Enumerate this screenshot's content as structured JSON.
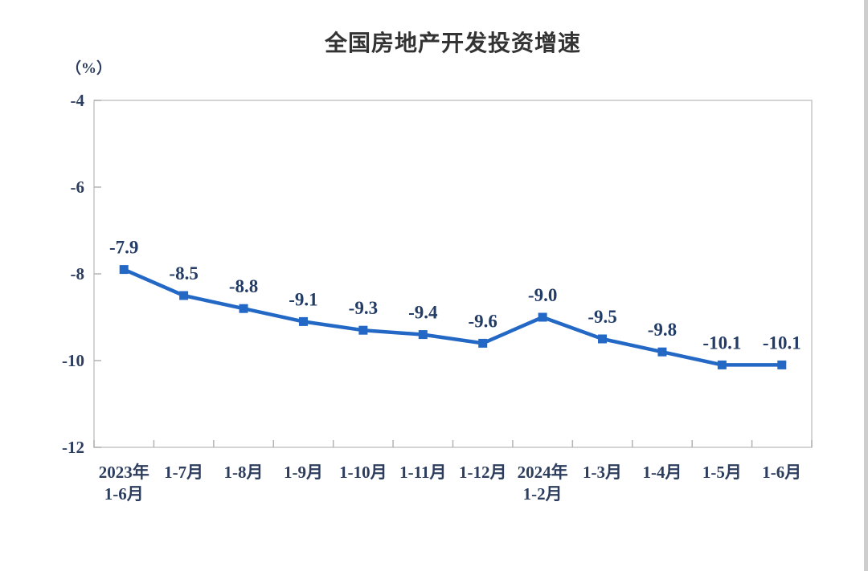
{
  "page": {
    "background": "#ffffff",
    "right_edge_strip_color": "#cdcdcd"
  },
  "chart_data": {
    "type": "line",
    "title": "全国房地产开发投资增速",
    "ylabel": "（%）",
    "xlabel": "",
    "categories": [
      [
        "2023年",
        "1-6月"
      ],
      [
        "1-7月"
      ],
      [
        "1-8月"
      ],
      [
        "1-9月"
      ],
      [
        "1-10月"
      ],
      [
        "1-11月"
      ],
      [
        "1-12月"
      ],
      [
        "2024年",
        "1-2月"
      ],
      [
        "1-3月"
      ],
      [
        "1-4月"
      ],
      [
        "1-5月"
      ],
      [
        "1-6月"
      ]
    ],
    "series": [
      {
        "name": "全国房地产开发投资增速",
        "values": [
          -7.9,
          -8.5,
          -8.8,
          -9.1,
          -9.3,
          -9.4,
          -9.6,
          -9.0,
          -9.5,
          -9.8,
          -10.1,
          -10.1
        ],
        "point_labels": [
          "-7.9",
          "-8.5",
          "-8.8",
          "-9.1",
          "-9.3",
          "-9.4",
          "-9.6",
          "-9.0",
          "-9.5",
          "-9.8",
          "-10.1",
          "-10.1"
        ]
      }
    ],
    "ylim": [
      -12,
      -4
    ],
    "y_ticks": [
      -4,
      -6,
      -8,
      -10,
      -12
    ],
    "grid": false,
    "legend": "none",
    "marker": "square",
    "colors": {
      "line": "#2368c5",
      "marker": "#2368c5",
      "data_label": "#233c66",
      "axis_label": "#2c3d5e",
      "axis_line": "#c6c6c6",
      "tick": "#b3b3b3",
      "title": "#333333"
    }
  }
}
